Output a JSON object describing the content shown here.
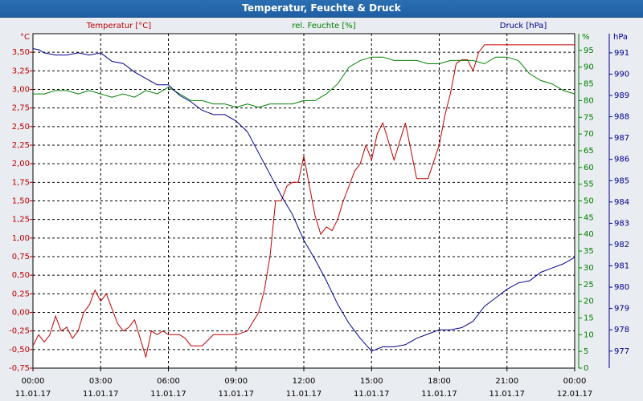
{
  "window": {
    "title": "Temperatur, Feuchte & Druck"
  },
  "chart_data": {
    "type": "line",
    "title": "Temperatur, Feuchte & Druck",
    "colors": {
      "temperature": "#c00000",
      "humidity": "#008000",
      "pressure": "#00008b"
    },
    "x_ticks": [
      {
        "time": "00:00",
        "date": "11.01.17"
      },
      {
        "time": "03:00",
        "date": "11.01.17"
      },
      {
        "time": "06:00",
        "date": "11.01.17"
      },
      {
        "time": "09:00",
        "date": "11.01.17"
      },
      {
        "time": "12:00",
        "date": "11.01.17"
      },
      {
        "time": "15:00",
        "date": "11.01.17"
      },
      {
        "time": "18:00",
        "date": "11.01.17"
      },
      {
        "time": "21:00",
        "date": "11.01.17"
      },
      {
        "time": "00:00",
        "date": "12.01.17"
      }
    ],
    "xlim_hours": [
      0,
      24
    ],
    "axes": {
      "temperature": {
        "label": "Temperatur [°C]",
        "unit": "°C",
        "ylim": [
          -0.75,
          3.75
        ],
        "ticks": [
          "-0,75",
          "-0,50",
          "-0,25",
          "0,00",
          "0,25",
          "0,50",
          "0,75",
          "1,00",
          "1,25",
          "1,50",
          "1,75",
          "2,00",
          "2,25",
          "2,50",
          "2,75",
          "3,00",
          "3,25",
          "3,50"
        ]
      },
      "humidity": {
        "label": "rel. Feuchte [%]",
        "unit": "%",
        "ylim": [
          0,
          100
        ],
        "ticks": [
          "0",
          "5",
          "10",
          "15",
          "20",
          "25",
          "30",
          "35",
          "40",
          "45",
          "50",
          "55",
          "60",
          "65",
          "70",
          "75",
          "80",
          "85",
          "90",
          "95"
        ]
      },
      "pressure": {
        "label": "Druck [hPa]",
        "unit": "hPa",
        "ylim": [
          976.2,
          991.9
        ],
        "ticks": [
          "977",
          "978",
          "979",
          "980",
          "981",
          "982",
          "983",
          "984",
          "985",
          "986",
          "987",
          "988",
          "989",
          "990",
          "991"
        ]
      }
    },
    "grid": true,
    "series": [
      {
        "name": "Temperatur [°C]",
        "axis": "temperature",
        "x_hours": [
          0,
          0.25,
          0.5,
          0.75,
          1,
          1.25,
          1.5,
          1.75,
          2,
          2.25,
          2.5,
          2.75,
          3,
          3.25,
          3.5,
          3.75,
          4,
          4.25,
          4.5,
          4.75,
          5,
          5.25,
          5.5,
          5.75,
          6,
          6.25,
          6.5,
          6.75,
          7,
          7.5,
          8,
          8.5,
          9,
          9.5,
          10,
          10.25,
          10.5,
          10.75,
          11,
          11.25,
          11.5,
          11.75,
          12,
          12.25,
          12.5,
          12.75,
          13,
          13.25,
          13.5,
          13.75,
          14,
          14.25,
          14.5,
          14.75,
          15,
          15.25,
          15.5,
          16,
          16.5,
          17,
          17.5,
          18,
          18.25,
          18.5,
          18.75,
          19,
          19.25,
          19.5,
          19.75,
          20,
          20.25,
          20.5,
          20.75,
          21,
          21.25,
          21.5,
          21.75,
          22,
          22.25,
          22.5,
          22.75,
          23,
          23.25,
          23.5,
          23.75,
          24
        ],
        "values": [
          -0.45,
          -0.3,
          -0.4,
          -0.3,
          -0.05,
          -0.25,
          -0.2,
          -0.35,
          -0.25,
          0,
          0.1,
          0.3,
          0.15,
          0.25,
          0.05,
          -0.15,
          -0.25,
          -0.2,
          -0.1,
          -0.35,
          -0.6,
          -0.25,
          -0.3,
          -0.25,
          -0.3,
          -0.3,
          -0.3,
          -0.35,
          -0.45,
          -0.45,
          -0.3,
          -0.3,
          -0.3,
          -0.25,
          0,
          0.3,
          0.75,
          1.5,
          1.5,
          1.7,
          1.75,
          1.75,
          2.1,
          1.7,
          1.3,
          1.05,
          1.15,
          1.1,
          1.25,
          1.5,
          1.7,
          1.9,
          2.0,
          2.25,
          2.05,
          2.4,
          2.55,
          2.05,
          2.55,
          1.8,
          1.8,
          2.25,
          2.65,
          2.95,
          3.35,
          3.4,
          3.4,
          3.25,
          3.5,
          3.6,
          3.6,
          3.6,
          3.6,
          3.6,
          3.6,
          3.6,
          3.6,
          3.6,
          3.6,
          3.6,
          3.6,
          3.6,
          3.6,
          3.6,
          3.6,
          3.6
        ]
      },
      {
        "name": "rel. Feuchte [%]",
        "axis": "humidity",
        "x_hours": [
          0,
          0.5,
          1,
          1.5,
          2,
          2.5,
          3,
          3.5,
          4,
          4.5,
          5,
          5.5,
          6,
          6.5,
          7,
          7.5,
          8,
          8.5,
          9,
          9.5,
          10,
          10.5,
          11,
          11.5,
          12,
          12.5,
          13,
          13.5,
          14,
          14.5,
          15,
          15.5,
          16,
          16.5,
          17,
          17.5,
          18,
          18.5,
          19,
          19.5,
          20,
          20.5,
          21,
          21.5,
          22,
          22.5,
          23,
          23.5,
          24
        ],
        "values": [
          82,
          82,
          83,
          83,
          82,
          83,
          82,
          81,
          82,
          81,
          83,
          82,
          84,
          82,
          80,
          80,
          79,
          79,
          78,
          79,
          78,
          79,
          79,
          79,
          80,
          80,
          82,
          85,
          90,
          92,
          93,
          93,
          92,
          92,
          92,
          91,
          91,
          92,
          92,
          92,
          91,
          93,
          93,
          92,
          88,
          86,
          85,
          83,
          82
        ]
      },
      {
        "name": "Druck [hPa]",
        "axis": "pressure",
        "x_hours": [
          0,
          0.25,
          0.5,
          1,
          1.5,
          2,
          2.5,
          3,
          3.5,
          4,
          4.5,
          5,
          5.5,
          6,
          6.5,
          7,
          7.5,
          8,
          8.5,
          9,
          9.5,
          10,
          10.5,
          11,
          11.5,
          12,
          12.5,
          13,
          13.5,
          14,
          14.5,
          15,
          15.5,
          16,
          16.5,
          17,
          17.5,
          18,
          18.5,
          19,
          19.5,
          20,
          20.5,
          21,
          21.5,
          22,
          22.5,
          23,
          23.5,
          24
        ],
        "values": [
          991.2,
          991.15,
          991.0,
          990.9,
          990.9,
          991.0,
          990.9,
          991.0,
          990.6,
          990.5,
          990.1,
          989.8,
          989.5,
          989.5,
          989.0,
          988.7,
          988.3,
          988.1,
          988.1,
          987.8,
          987.3,
          986.3,
          985.3,
          984.3,
          983.4,
          982.2,
          981.3,
          980.3,
          979.2,
          978.3,
          977.6,
          977.0,
          977.2,
          977.2,
          977.3,
          977.6,
          977.8,
          978.0,
          978.0,
          978.1,
          978.4,
          979.1,
          979.5,
          979.9,
          980.2,
          980.3,
          980.7,
          980.9,
          981.1,
          981.4
        ]
      }
    ]
  }
}
